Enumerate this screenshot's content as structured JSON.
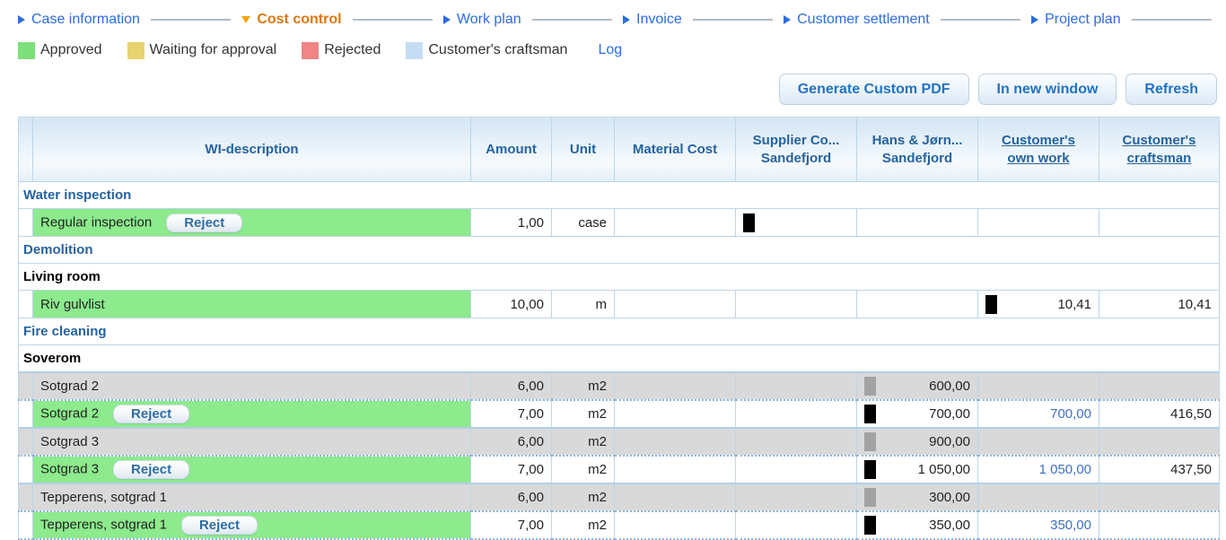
{
  "tabs": [
    {
      "label": "Case information",
      "active": false
    },
    {
      "label": "Cost control",
      "active": true
    },
    {
      "label": "Work plan",
      "active": false
    },
    {
      "label": "Invoice",
      "active": false
    },
    {
      "label": "Customer settlement",
      "active": false
    },
    {
      "label": "Project plan",
      "active": false
    }
  ],
  "legend": {
    "items": [
      {
        "label": "Approved",
        "color": "#7ce07c"
      },
      {
        "label": "Waiting for approval",
        "color": "#e7d36f"
      },
      {
        "label": "Rejected",
        "color": "#ef8585"
      },
      {
        "label": "Customer's craftsman",
        "color": "#c5dcf5"
      }
    ],
    "log_link": "Log"
  },
  "toolbar": {
    "buttons": [
      "Generate Custom PDF",
      "In new window",
      "Refresh"
    ]
  },
  "table": {
    "reject_label": "Reject",
    "headers": {
      "wi_description": "WI-description",
      "amount": "Amount",
      "unit": "Unit",
      "material_cost": "Material Cost",
      "supplier_line1": "Supplier Co...",
      "supplier_line2": "Sandefjord",
      "hans_line1": "Hans & Jørn...",
      "hans_line2": "Sandefjord",
      "own_work_line1": "Customer's",
      "own_work_line2": "own work",
      "craftsman_line1": "Customer's",
      "craftsman_line2": "craftsman"
    },
    "rows": [
      {
        "type": "group",
        "label": "Water inspection"
      },
      {
        "type": "item",
        "state": "green",
        "dotted": false,
        "description": "Regular inspection",
        "reject_button": true,
        "amount": "1,00",
        "unit": "case",
        "material_cost": "",
        "supplier": {
          "marker": "black",
          "value": ""
        },
        "hans": {
          "marker": null,
          "value": ""
        },
        "own": {
          "marker": null,
          "value": "",
          "blue": false
        },
        "craftsman": {
          "value": ""
        }
      },
      {
        "type": "group",
        "label": "Demolition"
      },
      {
        "type": "subgroup",
        "label": "Living room"
      },
      {
        "type": "item",
        "state": "green",
        "dotted": false,
        "description": "Riv gulvlist",
        "reject_button": false,
        "amount": "10,00",
        "unit": "m",
        "material_cost": "",
        "supplier": {
          "marker": null,
          "value": ""
        },
        "hans": {
          "marker": null,
          "value": ""
        },
        "own": {
          "marker": "black",
          "value": "10,41",
          "blue": false
        },
        "craftsman": {
          "value": "10,41"
        }
      },
      {
        "type": "group",
        "label": "Fire cleaning"
      },
      {
        "type": "subgroup",
        "label": "Soverom"
      },
      {
        "type": "item",
        "state": "gray",
        "dotted": false,
        "description": "Sotgrad 2",
        "reject_button": false,
        "amount": "6,00",
        "unit": "m2",
        "material_cost": "",
        "supplier": {
          "marker": null,
          "value": ""
        },
        "hans": {
          "marker": "gray",
          "value": "600,00"
        },
        "own": {
          "marker": null,
          "value": "",
          "blue": false
        },
        "craftsman": {
          "value": ""
        }
      },
      {
        "type": "item",
        "state": "green",
        "dotted": true,
        "description": "Sotgrad 2",
        "reject_button": true,
        "amount": "7,00",
        "unit": "m2",
        "material_cost": "",
        "supplier": {
          "marker": null,
          "value": ""
        },
        "hans": {
          "marker": "black",
          "value": "700,00"
        },
        "own": {
          "marker": null,
          "value": "700,00",
          "blue": true
        },
        "craftsman": {
          "value": "416,50"
        }
      },
      {
        "type": "item",
        "state": "gray",
        "dotted": false,
        "description": "Sotgrad 3",
        "reject_button": false,
        "amount": "6,00",
        "unit": "m2",
        "material_cost": "",
        "supplier": {
          "marker": null,
          "value": ""
        },
        "hans": {
          "marker": "gray",
          "value": "900,00"
        },
        "own": {
          "marker": null,
          "value": "",
          "blue": false
        },
        "craftsman": {
          "value": ""
        }
      },
      {
        "type": "item",
        "state": "green",
        "dotted": true,
        "description": "Sotgrad 3",
        "reject_button": true,
        "amount": "7,00",
        "unit": "m2",
        "material_cost": "",
        "supplier": {
          "marker": null,
          "value": ""
        },
        "hans": {
          "marker": "black",
          "value": "1 050,00"
        },
        "own": {
          "marker": null,
          "value": "1 050,00",
          "blue": true
        },
        "craftsman": {
          "value": "437,50"
        }
      },
      {
        "type": "item",
        "state": "gray",
        "dotted": false,
        "description": "Tepperens, sotgrad 1",
        "reject_button": false,
        "amount": "6,00",
        "unit": "m2",
        "material_cost": "",
        "supplier": {
          "marker": null,
          "value": ""
        },
        "hans": {
          "marker": "gray",
          "value": "300,00"
        },
        "own": {
          "marker": null,
          "value": "",
          "blue": false
        },
        "craftsman": {
          "value": ""
        }
      },
      {
        "type": "item",
        "state": "green",
        "dotted": true,
        "last": true,
        "description": "Tepperens, sotgrad 1",
        "reject_button": true,
        "amount": "7,00",
        "unit": "m2",
        "material_cost": "",
        "supplier": {
          "marker": null,
          "value": ""
        },
        "hans": {
          "marker": "black",
          "value": "350,00"
        },
        "own": {
          "marker": null,
          "value": "350,00",
          "blue": true
        },
        "craftsman": {
          "value": ""
        }
      }
    ]
  }
}
